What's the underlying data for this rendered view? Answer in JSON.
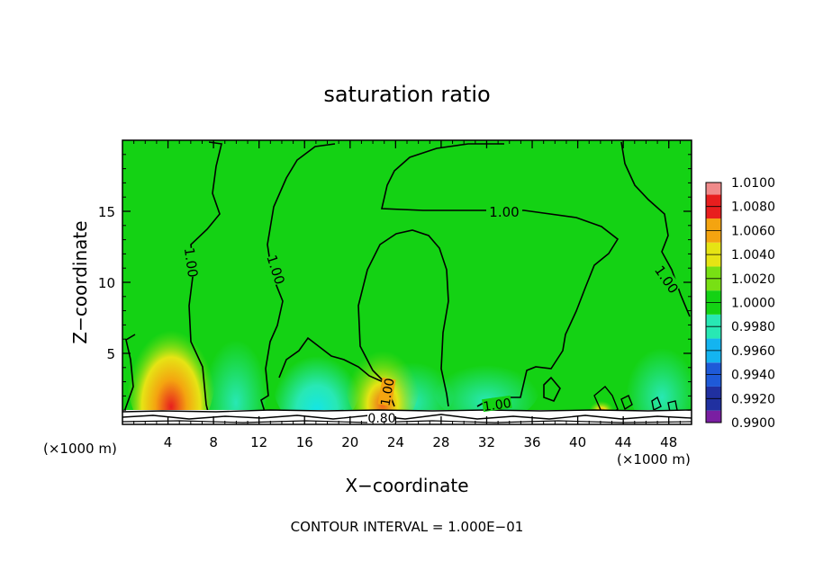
{
  "chart_data": {
    "type": "heatmap",
    "title": "saturation ratio",
    "xlabel": "X−coordinate",
    "ylabel": "Z−coordinate",
    "x_unit": "(×1000 m)",
    "x_unit_right": "(×1000 m)",
    "xlim": [
      0,
      50
    ],
    "ylim": [
      0,
      20
    ],
    "x_ticks": [
      4,
      8,
      12,
      16,
      20,
      24,
      28,
      32,
      36,
      40,
      44,
      48
    ],
    "x_tick_labels": [
      "4",
      "8",
      "12",
      "16",
      "20",
      "24",
      "28",
      "32",
      "36",
      "40",
      "44",
      "48"
    ],
    "y_ticks": [
      5,
      10,
      15
    ],
    "y_tick_labels": [
      "5",
      "10",
      "15"
    ],
    "contour_labels": [
      "1.00",
      "1.00",
      "1.00",
      "1.00",
      "1.00",
      "1.00",
      "0.80"
    ],
    "footer": "CONTOUR INTERVAL = 1.000E−01",
    "colorbar": {
      "levels": [
        0.99,
        0.992,
        0.994,
        0.996,
        0.998,
        1.0,
        1.002,
        1.004,
        1.006,
        1.008,
        1.01
      ],
      "labels": [
        "1.0100",
        "1.0080",
        "1.0060",
        "1.0040",
        "1.0020",
        "1.0000",
        "0.9980",
        "0.9960",
        "0.9940",
        "0.9920",
        "0.9900"
      ],
      "colors": [
        "#7a1fa2",
        "#2030a0",
        "#1e5ad8",
        "#14b4f0",
        "#28e8b4",
        "#14d214",
        "#78e014",
        "#e6e414",
        "#f4a410",
        "#e81e1e",
        "#f08a8a"
      ]
    }
  }
}
